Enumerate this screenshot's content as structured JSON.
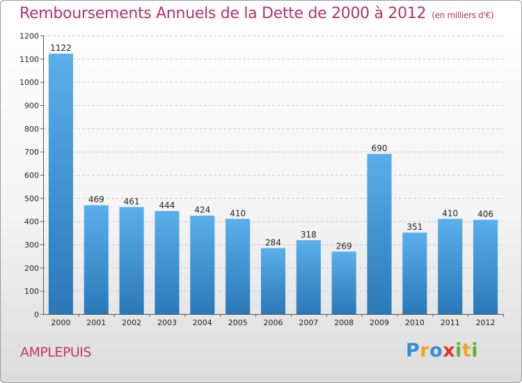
{
  "header": {
    "title": "Remboursements Annuels de la Dette de 2000 à 2012",
    "subtitle": "(en milliers d'€)"
  },
  "footer": {
    "commune": "AMPLEPUIS",
    "logo_letters": [
      {
        "ch": "P",
        "color": "#2f8fd6"
      },
      {
        "ch": "r",
        "color": "#f4a41c"
      },
      {
        "ch": "o",
        "color": "#2f8fd6"
      },
      {
        "ch": "x",
        "color": "#e4302a"
      },
      {
        "ch": "i",
        "color": "#5ab030"
      },
      {
        "ch": "t",
        "color": "#f4a41c"
      },
      {
        "ch": "i",
        "color": "#5ab030"
      }
    ]
  },
  "chart_data": {
    "type": "bar",
    "title": "Remboursements Annuels de la Dette de 2000 à 2012",
    "subtitle": "(en milliers d'€)",
    "categories": [
      "2000",
      "2001",
      "2002",
      "2003",
      "2004",
      "2005",
      "2006",
      "2007",
      "2008",
      "2009",
      "2010",
      "2011",
      "2012"
    ],
    "values": [
      1122,
      469,
      461,
      444,
      424,
      410,
      284,
      318,
      269,
      690,
      351,
      410,
      406
    ],
    "data_labels": [
      "1122",
      "469",
      "461",
      "444",
      "424",
      "410",
      "284",
      "318",
      "269",
      "690",
      "351",
      "410",
      "406"
    ],
    "ylim": [
      0,
      1200
    ],
    "yticks": [
      0,
      100,
      200,
      300,
      400,
      500,
      600,
      700,
      800,
      900,
      1000,
      1100,
      1200
    ],
    "ytick_labels": [
      "0",
      "100",
      "200",
      "300",
      "400",
      "500",
      "600",
      "700",
      "800",
      "900",
      "1000",
      "1100",
      "1200"
    ],
    "grid": true,
    "legend": "none",
    "bar_color_top": "#5aafea",
    "bar_color_bottom": "#2a78b8"
  }
}
